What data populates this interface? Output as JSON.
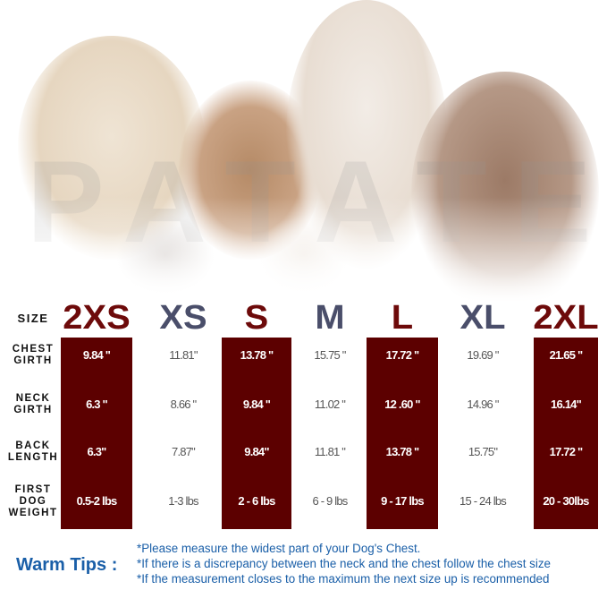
{
  "watermark": "PATATE",
  "header": {
    "size_label": "SIZE"
  },
  "sizes": [
    "2XS",
    "XS",
    "S",
    "M",
    "L",
    "XL",
    "2XL"
  ],
  "highlighted": [
    true,
    false,
    true,
    false,
    true,
    false,
    true
  ],
  "colors": {
    "highlight": "#5c0000",
    "size_red": "#6d0a0a",
    "size_blue": "#4a4e6a",
    "tips": "#1a5fa8"
  },
  "rows": [
    {
      "label": "CHEST GIRTH",
      "values": [
        "9.84 \"",
        "11.81\"",
        "13.78 \"",
        "15.75 \"",
        "17.72 \"",
        "19.69 \"",
        "21.65 \""
      ]
    },
    {
      "label": "NECK GIRTH",
      "values": [
        "6.3 \"",
        "8.66 \"",
        "9.84 \"",
        "11.02 \"",
        "12 .60 \"",
        "14.96 \"",
        "16.14\""
      ]
    },
    {
      "label": "BACK LENGTH",
      "values": [
        "6.3\"",
        "7.87\"",
        "9.84\"",
        "11.81 \"",
        "13.78 \"",
        "15.75\"",
        "17.72 \""
      ]
    },
    {
      "label": "FIRST DOG WEIGHT",
      "values": [
        "0.5-2 lbs",
        "1-3 lbs",
        "2 - 6 lbs",
        "6 - 9 lbs",
        "9 - 17 lbs",
        "15 - 24 lbs",
        "20 - 30lbs"
      ]
    }
  ],
  "tips": {
    "heading": "Warm Tips :",
    "lines": [
      "*Please measure the widest part of your Dog's Chest.",
      "*If there is a discrepancy between the neck and the chest  follow the chest size",
      "*If the measurement closes to the maximum the next size up is recommended"
    ]
  }
}
